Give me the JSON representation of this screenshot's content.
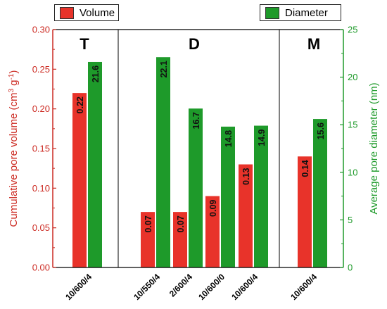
{
  "chart_data": {
    "type": "bar",
    "categories": [
      "10/600/4",
      "10/550/4",
      "2/600/4",
      "10/600/0",
      "10/600/4",
      "10/600/4"
    ],
    "groups": [
      {
        "label": "T",
        "categories": [
          0
        ]
      },
      {
        "label": "D",
        "categories": [
          1,
          2,
          3,
          4
        ]
      },
      {
        "label": "M",
        "categories": [
          5
        ]
      }
    ],
    "series": [
      {
        "name": "Volume",
        "axis": "left",
        "color": "#e8332a",
        "values": [
          0.22,
          0.07,
          0.07,
          0.09,
          0.13,
          0.14
        ],
        "labels": [
          "0.22",
          "0.07",
          "0.07",
          "0.09",
          "0.13",
          "0.14"
        ]
      },
      {
        "name": "Diameter",
        "axis": "right",
        "color": "#1e9a2a",
        "values": [
          21.6,
          22.1,
          16.7,
          14.8,
          14.9,
          15.6
        ],
        "labels": [
          "21.6",
          "22.1",
          "16.7",
          "14.8",
          "14.9",
          "15.6"
        ]
      }
    ],
    "ylabel": "Cumulative pore volume (cm³ g⁻¹)",
    "ylabel_parts": {
      "main": "Cumulative pore volume (cm",
      "sup1": "3",
      "mid": " g",
      "sup2": "-1",
      "end": ")"
    },
    "y2label": "Average pore diameter (nm)",
    "ylim": [
      0,
      0.3
    ],
    "y2lim": [
      0,
      25
    ],
    "yticks": [
      "0.00",
      "0.05",
      "0.10",
      "0.15",
      "0.20",
      "0.25",
      "0.30"
    ],
    "y2ticks": [
      "0",
      "5",
      "10",
      "15",
      "20",
      "25"
    ],
    "left_axis_color": "#cc2a22",
    "right_axis_color": "#1e9a2a",
    "legend": "top"
  }
}
